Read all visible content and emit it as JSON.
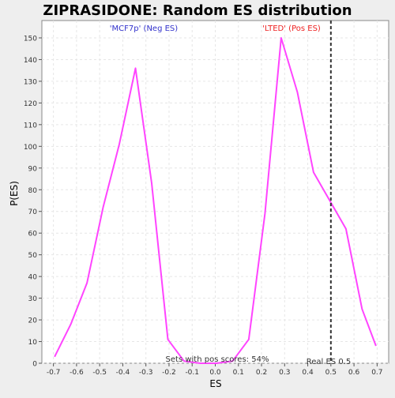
{
  "chart_data": {
    "type": "line",
    "title": "ZIPRASIDONE: Random ES distribution",
    "xlabel": "ES",
    "ylabel": "P(ES)",
    "xlim": [
      -0.75,
      0.75
    ],
    "ylim": [
      0,
      158
    ],
    "x_ticks": [
      -0.7,
      -0.6,
      -0.5,
      -0.4,
      -0.3,
      -0.2,
      -0.1,
      0.0,
      0.1,
      0.2,
      0.3,
      0.4,
      0.5,
      0.6,
      0.7
    ],
    "x_tick_labels": [
      "-0.7",
      "-0.6",
      "-0.5",
      "-0.4",
      "-0.3",
      "-0.2",
      "-0.1",
      "0.0",
      "0.1",
      "0.2",
      "0.3",
      "0.4",
      "0.5",
      "0.6",
      "0.7"
    ],
    "y_ticks": [
      0,
      10,
      20,
      30,
      40,
      50,
      60,
      70,
      80,
      90,
      100,
      110,
      120,
      130,
      140,
      150
    ],
    "y_tick_labels": [
      "0",
      "10",
      "20",
      "30",
      "40",
      "50",
      "60",
      "70",
      "80",
      "90",
      "100",
      "110",
      "120",
      "130",
      "140",
      "150"
    ],
    "grid": true,
    "series": [
      {
        "color": "#ff44ff",
        "x": [
          -0.695,
          -0.625,
          -0.555,
          -0.485,
          -0.415,
          -0.345,
          -0.275,
          -0.205,
          -0.135,
          -0.065,
          0.005,
          0.075,
          0.145,
          0.215,
          0.285,
          0.355,
          0.425,
          0.495,
          0.565,
          0.635,
          0.695
        ],
        "y": [
          3,
          18,
          37,
          72,
          101,
          136,
          83,
          11,
          1,
          0,
          0,
          1,
          11,
          69,
          150,
          125,
          88,
          75,
          62,
          25,
          8
        ]
      }
    ],
    "real_es": {
      "x": 0.5,
      "label": "Real ES 0.5",
      "color": "#333333"
    },
    "annotations": [
      {
        "text": "'MCF7p' (Neg ES)",
        "color": "#3333cc"
      },
      {
        "text": "'LTED' (Pos ES)",
        "color": "#ee2222"
      },
      {
        "text": "Sets with pos scores: 54%",
        "color": "#333333"
      }
    ],
    "colors": {
      "background": "#eeeeee",
      "plot_background": "#ffffff",
      "grid": "#e6e6e6"
    }
  }
}
